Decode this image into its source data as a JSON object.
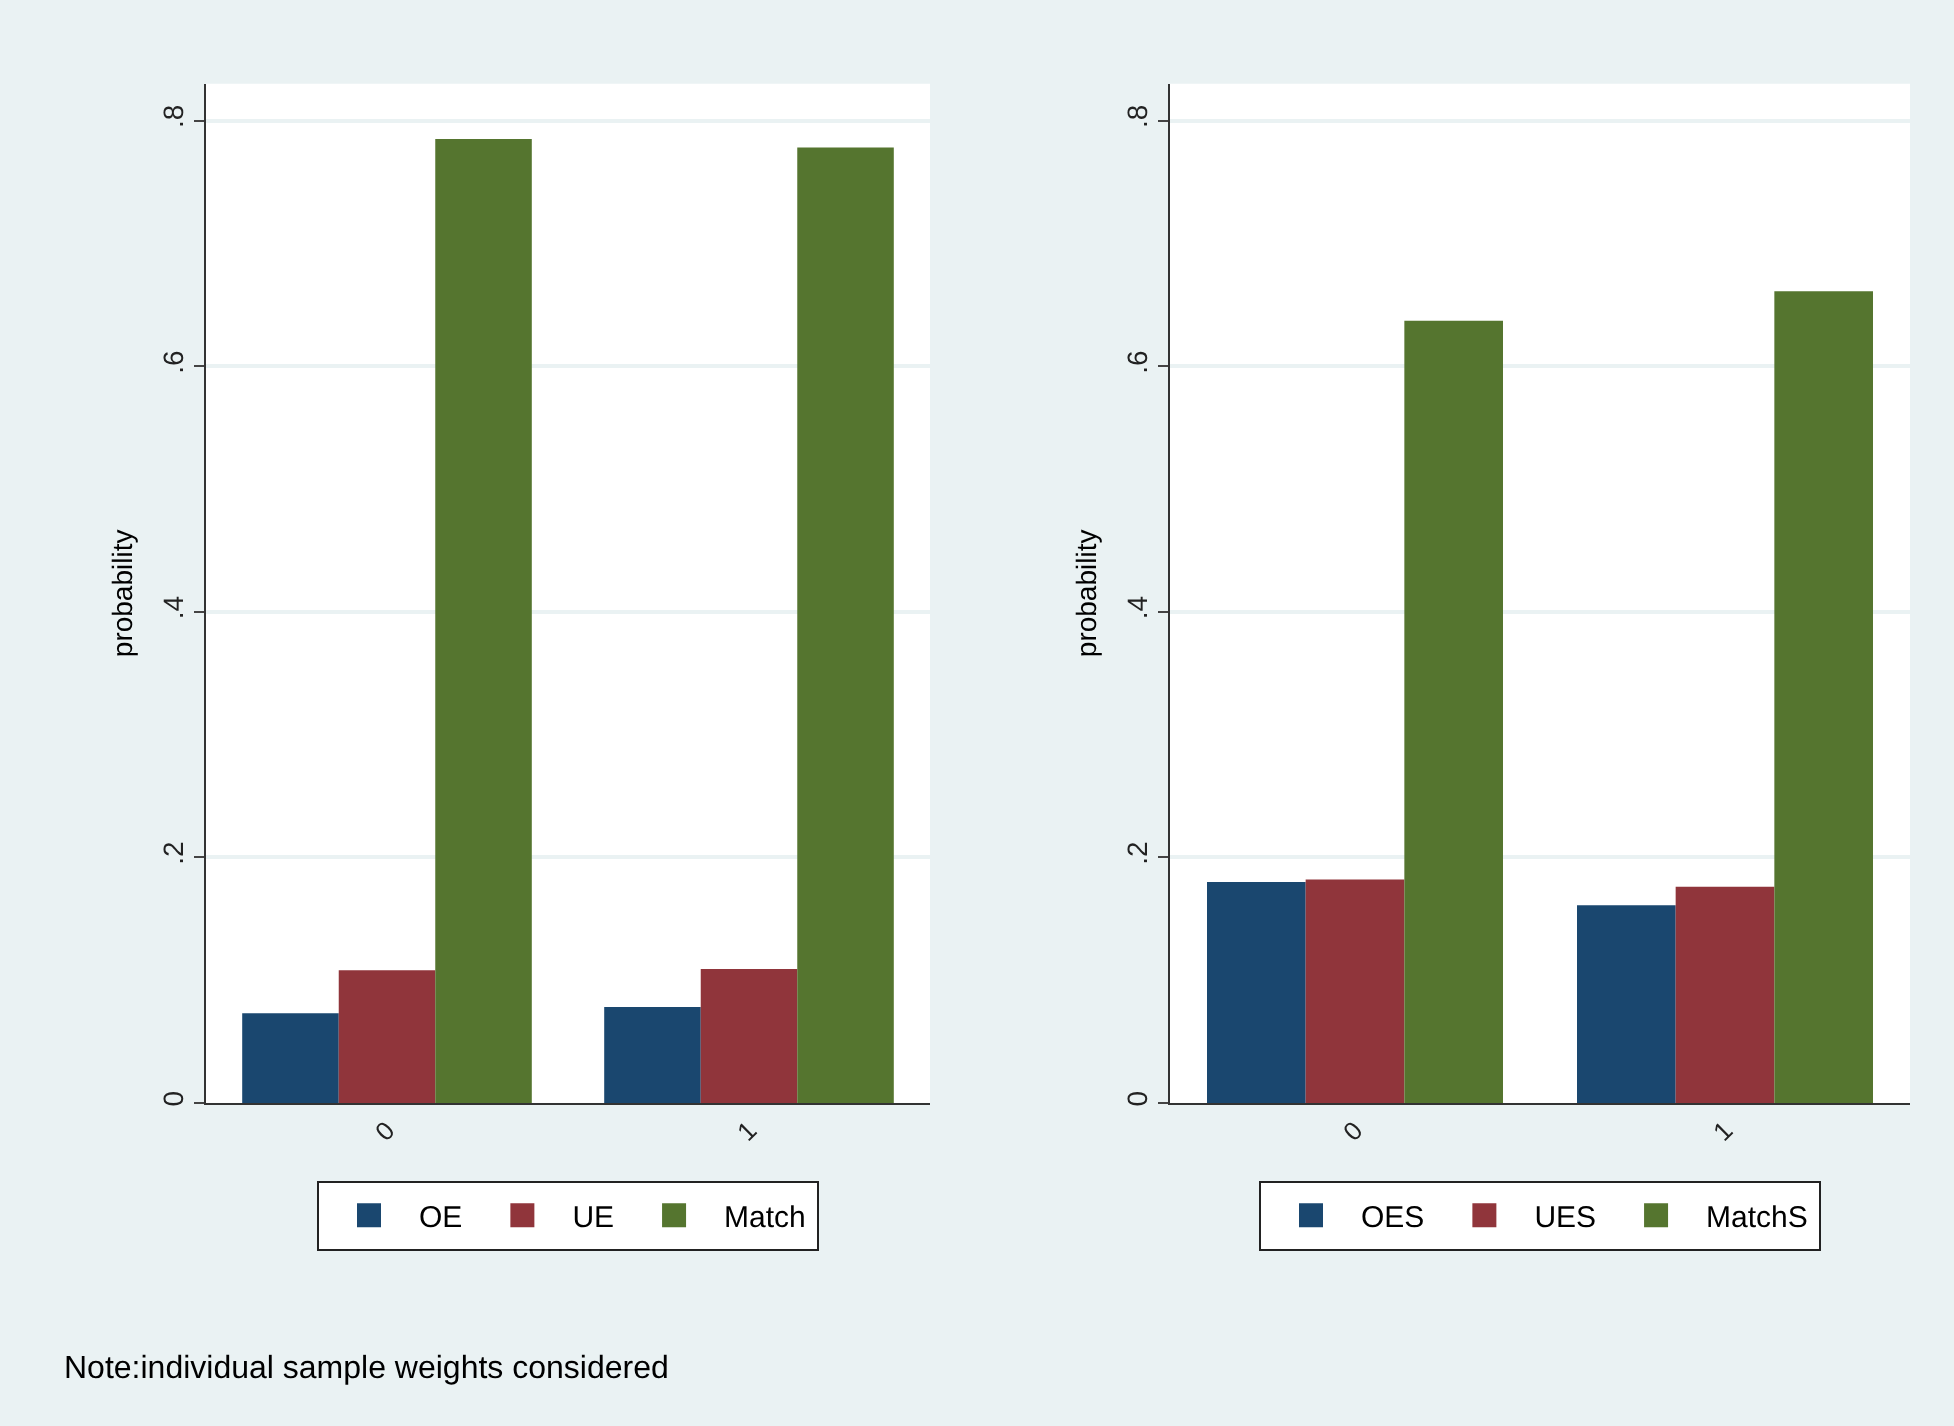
{
  "chart_data": [
    {
      "type": "bar",
      "categories": [
        "0",
        "1"
      ],
      "ylabel": "probability",
      "ylim": [
        0,
        0.83
      ],
      "yticks": [
        0,
        {
          "value": 0.2,
          "label": ".2"
        },
        {
          "value": 0.4,
          "label": ".4"
        },
        {
          "value": 0.6,
          "label": ".6"
        },
        {
          "value": 0.8,
          "label": ".8"
        }
      ],
      "grid": "y",
      "legend": "bottom",
      "series": [
        {
          "name": "OE",
          "color": "#1a476f",
          "values": [
            0.073,
            0.078
          ]
        },
        {
          "name": "UE",
          "color": "#90353b",
          "values": [
            0.108,
            0.109
          ]
        },
        {
          "name": "Match",
          "color": "#55752f",
          "values": [
            0.785,
            0.778
          ]
        }
      ],
      "annotations": [
        "Note:individual sample weights considered"
      ]
    },
    {
      "type": "bar",
      "categories": [
        "0",
        "1"
      ],
      "ylabel": "probability",
      "ylim": [
        0,
        0.83
      ],
      "yticks": [
        0,
        {
          "value": 0.2,
          "label": ".2"
        },
        {
          "value": 0.4,
          "label": ".4"
        },
        {
          "value": 0.6,
          "label": ".6"
        },
        {
          "value": 0.8,
          "label": ".8"
        }
      ],
      "grid": "y",
      "legend": "bottom",
      "series": [
        {
          "name": "OES",
          "color": "#1a476f",
          "values": [
            0.18,
            0.161
          ]
        },
        {
          "name": "UES",
          "color": "#90353b",
          "values": [
            0.182,
            0.176
          ]
        },
        {
          "name": "MatchS",
          "color": "#55752f",
          "values": [
            0.637,
            0.661
          ]
        }
      ]
    }
  ]
}
